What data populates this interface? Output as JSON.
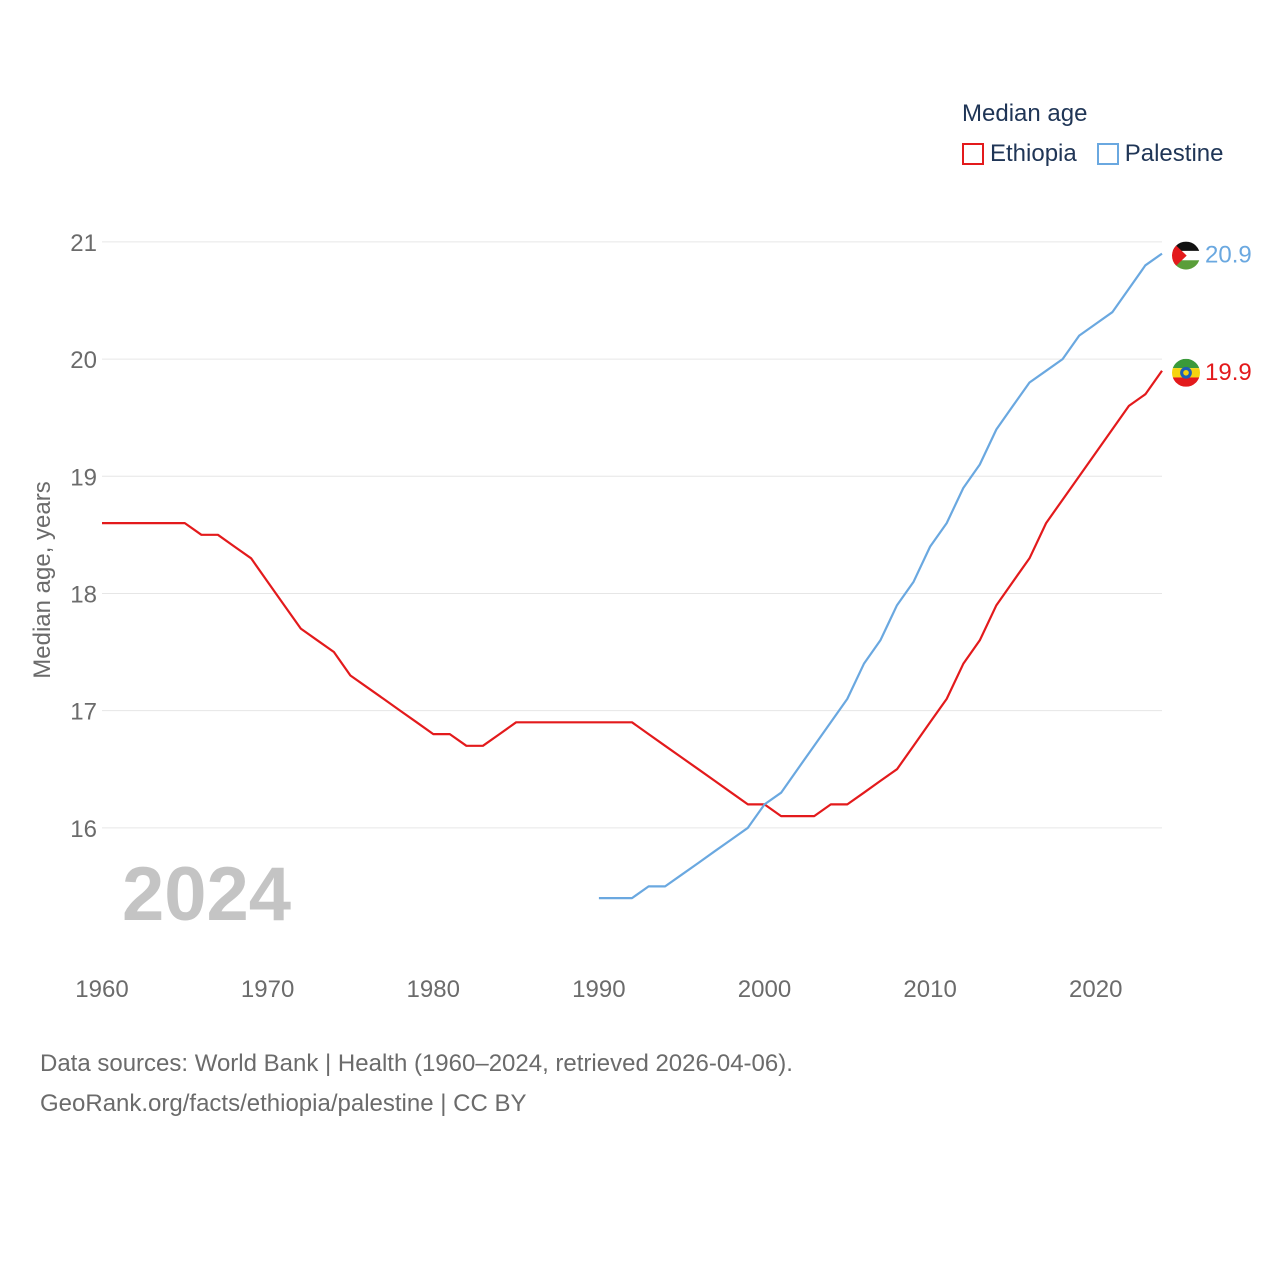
{
  "chart_data": {
    "type": "line",
    "title": "Median age",
    "ylabel": "Median age, years",
    "xlabel": "",
    "xlim": [
      1960,
      2024
    ],
    "ylim": [
      15.0,
      21.4
    ],
    "x_ticks": [
      1960,
      1970,
      1980,
      1990,
      2000,
      2010,
      2020
    ],
    "y_ticks": [
      16,
      17,
      18,
      19,
      20,
      21
    ],
    "grid": true,
    "legend_placement": "top-right",
    "year_watermark": "2024",
    "series": [
      {
        "name": "Ethiopia",
        "color": "#e31a1c",
        "end_label": "19.9",
        "flag": "ethiopia-flag",
        "x": [
          1960,
          1961,
          1962,
          1963,
          1964,
          1965,
          1966,
          1967,
          1968,
          1969,
          1970,
          1971,
          1972,
          1973,
          1974,
          1975,
          1976,
          1977,
          1978,
          1979,
          1980,
          1981,
          1982,
          1983,
          1984,
          1985,
          1986,
          1987,
          1988,
          1989,
          1990,
          1991,
          1992,
          1993,
          1994,
          1995,
          1996,
          1997,
          1998,
          1999,
          2000,
          2001,
          2002,
          2003,
          2004,
          2005,
          2006,
          2007,
          2008,
          2009,
          2010,
          2011,
          2012,
          2013,
          2014,
          2015,
          2016,
          2017,
          2018,
          2019,
          2020,
          2021,
          2022,
          2023,
          2024
        ],
        "values": [
          18.6,
          18.6,
          18.6,
          18.6,
          18.6,
          18.6,
          18.5,
          18.5,
          18.4,
          18.3,
          18.1,
          17.9,
          17.7,
          17.6,
          17.5,
          17.3,
          17.2,
          17.1,
          17.0,
          16.9,
          16.8,
          16.8,
          16.7,
          16.7,
          16.8,
          16.9,
          16.9,
          16.9,
          16.9,
          16.9,
          16.9,
          16.9,
          16.9,
          16.8,
          16.7,
          16.6,
          16.5,
          16.4,
          16.3,
          16.2,
          16.2,
          16.1,
          16.1,
          16.1,
          16.2,
          16.2,
          16.3,
          16.4,
          16.5,
          16.7,
          16.9,
          17.1,
          17.4,
          17.6,
          17.9,
          18.1,
          18.3,
          18.6,
          18.8,
          19.0,
          19.2,
          19.4,
          19.6,
          19.7,
          19.9
        ]
      },
      {
        "name": "Palestine",
        "color": "#6aa8e0",
        "end_label": "20.9",
        "flag": "palestine-flag",
        "x": [
          1990,
          1991,
          1992,
          1993,
          1994,
          1995,
          1996,
          1997,
          1998,
          1999,
          2000,
          2001,
          2002,
          2003,
          2004,
          2005,
          2006,
          2007,
          2008,
          2009,
          2010,
          2011,
          2012,
          2013,
          2014,
          2015,
          2016,
          2017,
          2018,
          2019,
          2020,
          2021,
          2022,
          2023,
          2024
        ],
        "values": [
          15.4,
          15.4,
          15.4,
          15.5,
          15.5,
          15.6,
          15.7,
          15.8,
          15.9,
          16.0,
          16.2,
          16.3,
          16.5,
          16.7,
          16.9,
          17.1,
          17.4,
          17.6,
          17.9,
          18.1,
          18.4,
          18.6,
          18.9,
          19.1,
          19.4,
          19.6,
          19.8,
          19.9,
          20.0,
          20.2,
          20.3,
          20.4,
          20.6,
          20.8,
          20.9
        ]
      }
    ]
  },
  "legend": {
    "title": "Median age",
    "items": [
      "Ethiopia",
      "Palestine"
    ]
  },
  "source": {
    "line1": "Data sources: World Bank | Health (1960–2024, retrieved 2026-04-06).",
    "line2": "GeoRank.org/facts/ethiopia/palestine | CC BY"
  }
}
